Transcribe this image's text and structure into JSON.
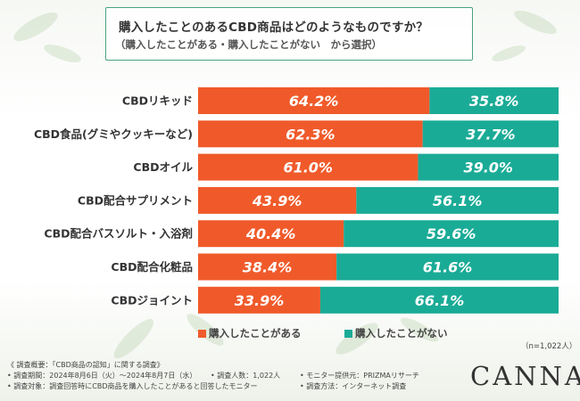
{
  "title": {
    "line1": "購入したことのあるCBD商品はどのようなものですか？",
    "line2": "（購入したことがある・購入したことがない　から選択）"
  },
  "colors": {
    "purchased": "#f05a2a",
    "not_purchased": "#1aab96"
  },
  "chart_data": {
    "type": "bar",
    "orientation": "horizontal",
    "stacked": true,
    "categories": [
      "CBDリキッド",
      "CBD食品(グミやクッキーなど)",
      "CBDオイル",
      "CBD配合サプリメント",
      "CBD配合バスソルト・入浴剤",
      "CBD配合化粧品",
      "CBDジョイント"
    ],
    "series": [
      {
        "name": "購入したことがある",
        "values": [
          64.2,
          62.3,
          61.0,
          43.9,
          40.4,
          38.4,
          33.9
        ],
        "labels": [
          "64.2%",
          "62.3%",
          "61.0%",
          "43.9%",
          "40.4%",
          "38.4%",
          "33.9%"
        ]
      },
      {
        "name": "購入したことがない",
        "values": [
          35.8,
          37.7,
          39.0,
          56.1,
          59.6,
          61.6,
          66.1
        ],
        "labels": [
          "35.8%",
          "37.7%",
          "39.0%",
          "56.1%",
          "59.6%",
          "61.6%",
          "66.1%"
        ]
      }
    ],
    "xlim": [
      0,
      100
    ],
    "sample_note": "（n=1,022人）"
  },
  "legend": {
    "purchased": "購入したことがある",
    "not_purchased": "購入したことがない"
  },
  "notes": {
    "heading": "《 調査概要：「CBD商品の認知」に関する調査》",
    "period": "• 調査期間：2024年8月6日（火）～2024年8月7日（水）",
    "respondents": "• 調査人数：1,022人",
    "provider": "• モニター提供元：PRIZMAリサーチ",
    "target": "• 調査対象：調査回答時にCBD商品を購入したことがあると回答したモニター",
    "method": "• 調査方法：インターネット調査"
  },
  "brand": "CANNA"
}
